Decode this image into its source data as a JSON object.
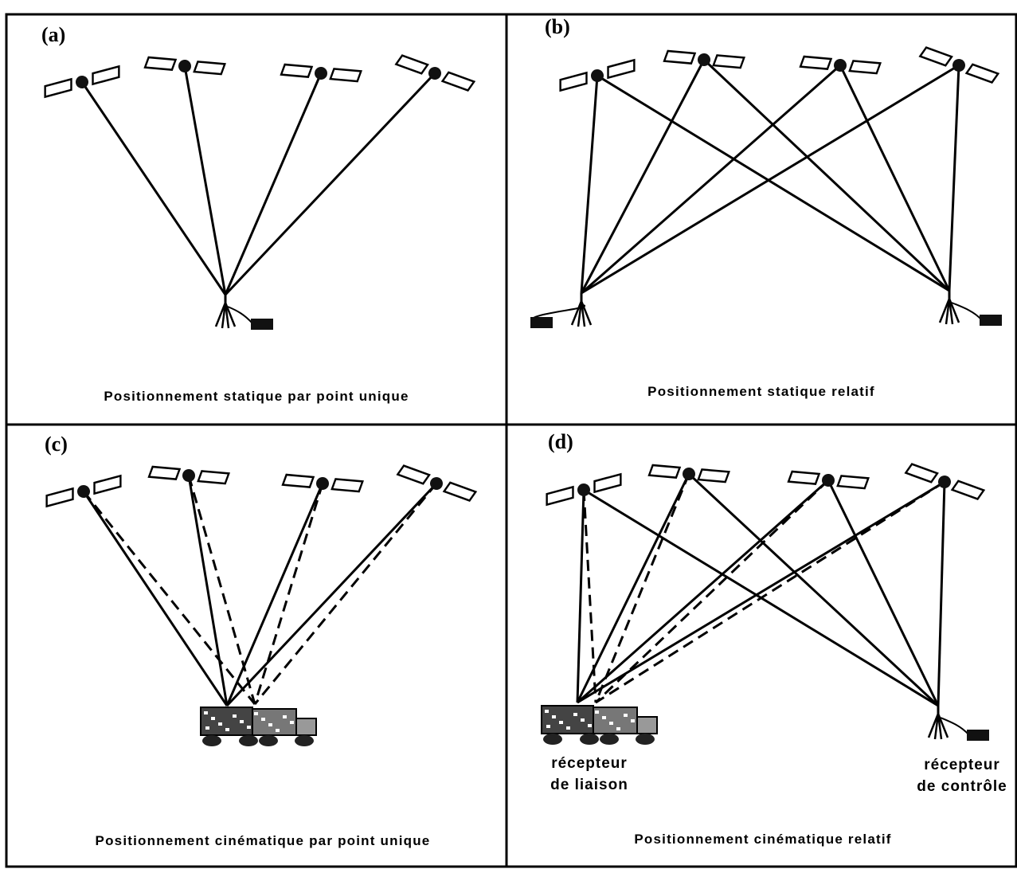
{
  "panels": [
    {
      "label": "(a)",
      "caption": "Positionnement statique par point unique"
    },
    {
      "label": "(b)",
      "caption": "Positionnement statique relatif"
    },
    {
      "label": "(c)",
      "caption": "Positionnement cinématique par point unique"
    },
    {
      "label": "(d)",
      "caption": "Positionnement cinématique relatif",
      "receivers": [
        {
          "lines": [
            "récepteur",
            "de liaison"
          ]
        },
        {
          "lines": [
            "récepteur",
            "de contrôle"
          ]
        }
      ]
    }
  ]
}
